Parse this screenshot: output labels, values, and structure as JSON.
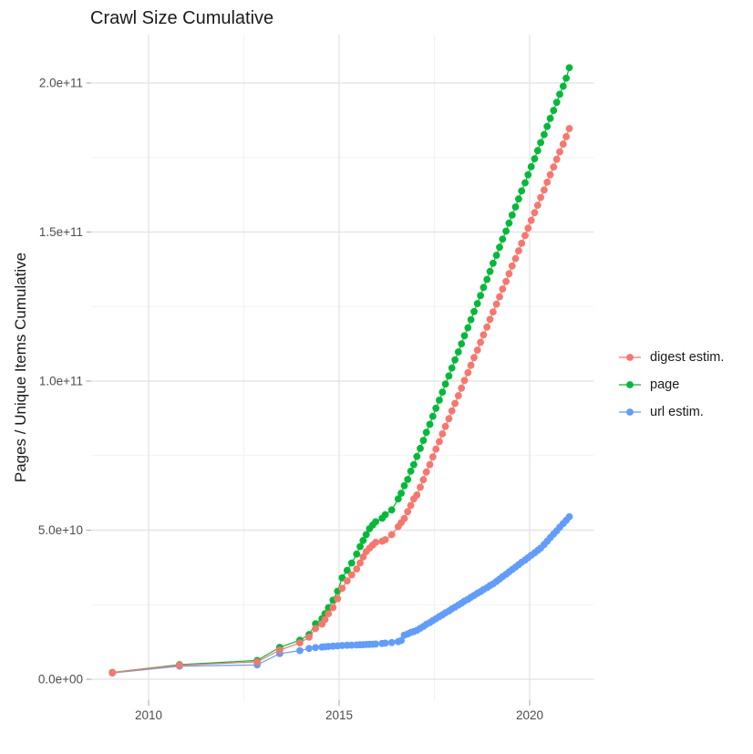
{
  "chart_data": {
    "type": "line",
    "title": "Crawl Size Cumulative",
    "xlabel": "",
    "ylabel": "Pages / Unique Items Cumulative",
    "unit": "pages, billions (1e9)",
    "grid": true,
    "legend_position": "right-center",
    "style": {
      "background": "#FFFFFF",
      "grid_major": "#E5E5E5",
      "grid_minor": "#F2F2F2",
      "tick_color": "#B8B8B8",
      "tick_label_color": "#4D4D4D",
      "text_color": "#1A1A1A"
    },
    "x_axis": {
      "range": [
        2008.5,
        2021.7
      ],
      "ticks": [
        {
          "value": 2010,
          "label": "2010"
        },
        {
          "value": 2015,
          "label": "2015"
        },
        {
          "value": 2020,
          "label": "2020"
        }
      ],
      "minor_ticks": [
        2012.5,
        2017.5
      ]
    },
    "y_axis": {
      "range_billions": [
        0,
        223
      ],
      "ticks": [
        {
          "value": 0,
          "label": "0.0e+00"
        },
        {
          "value": 50,
          "label": "5.0e+10"
        },
        {
          "value": 100,
          "label": "1.0e+11"
        },
        {
          "value": 150,
          "label": "1.5e+11"
        },
        {
          "value": 200,
          "label": "2.0e+11"
        }
      ],
      "minor_ticks": [
        25,
        75,
        125,
        175
      ]
    },
    "draw_order": [
      1,
      2,
      0
    ],
    "series": [
      {
        "name": "digest estim.",
        "color": "#F8766D",
        "points": [
          [
            2009.05,
            2.2
          ],
          [
            2010.81,
            4.7
          ],
          [
            2012.85,
            5.8
          ],
          [
            2013.44,
            9.8
          ],
          [
            2013.97,
            12.2
          ],
          [
            2014.21,
            14.1
          ],
          [
            2014.38,
            17.0
          ],
          [
            2014.55,
            18.5
          ],
          [
            2014.63,
            20.0
          ],
          [
            2014.72,
            22.0
          ],
          [
            2014.84,
            24.0
          ],
          [
            2014.96,
            27.0
          ],
          [
            2015.08,
            30.5
          ],
          [
            2015.21,
            33.0
          ],
          [
            2015.33,
            35.0
          ],
          [
            2015.46,
            37.0
          ],
          [
            2015.55,
            39.0
          ],
          [
            2015.63,
            41.0
          ],
          [
            2015.71,
            42.8
          ],
          [
            2015.8,
            44.0
          ],
          [
            2015.88,
            45.0
          ],
          [
            2015.96,
            45.9
          ],
          [
            2016.13,
            46.3
          ],
          [
            2016.21,
            46.8
          ],
          [
            2016.38,
            48.5
          ],
          [
            2016.55,
            51.2
          ],
          [
            2016.63,
            52.5
          ],
          [
            2016.71,
            53.9
          ],
          [
            2016.8,
            56.2
          ],
          [
            2016.88,
            58.3
          ],
          [
            2016.96,
            60.5
          ],
          [
            2017.04,
            61.8
          ],
          [
            2017.13,
            64.4
          ],
          [
            2017.21,
            66.9
          ],
          [
            2017.29,
            69.5
          ],
          [
            2017.38,
            72.0
          ],
          [
            2017.46,
            74.6
          ],
          [
            2017.54,
            77.2
          ],
          [
            2017.63,
            79.7
          ],
          [
            2017.71,
            82.3
          ],
          [
            2017.79,
            84.8
          ],
          [
            2017.88,
            87.4
          ],
          [
            2017.96,
            90.0
          ],
          [
            2018.04,
            92.5
          ],
          [
            2018.13,
            95.1
          ],
          [
            2018.21,
            97.6
          ],
          [
            2018.29,
            100.2
          ],
          [
            2018.38,
            102.8
          ],
          [
            2018.46,
            105.3
          ],
          [
            2018.54,
            107.9
          ],
          [
            2018.63,
            110.4
          ],
          [
            2018.71,
            113.0
          ],
          [
            2018.79,
            115.5
          ],
          [
            2018.88,
            118.1
          ],
          [
            2018.96,
            120.7
          ],
          [
            2019.04,
            123.2
          ],
          [
            2019.13,
            125.8
          ],
          [
            2019.21,
            128.3
          ],
          [
            2019.29,
            130.9
          ],
          [
            2019.38,
            133.4
          ],
          [
            2019.46,
            136.0
          ],
          [
            2019.54,
            138.6
          ],
          [
            2019.63,
            141.1
          ],
          [
            2019.71,
            143.7
          ],
          [
            2019.79,
            146.2
          ],
          [
            2019.88,
            148.8
          ],
          [
            2019.96,
            151.3
          ],
          [
            2020.04,
            153.9
          ],
          [
            2020.13,
            156.5
          ],
          [
            2020.21,
            159.0
          ],
          [
            2020.29,
            161.6
          ],
          [
            2020.38,
            164.1
          ],
          [
            2020.46,
            166.7
          ],
          [
            2020.54,
            169.2
          ],
          [
            2020.63,
            171.8
          ],
          [
            2020.71,
            174.4
          ],
          [
            2020.79,
            176.9
          ],
          [
            2020.88,
            179.5
          ],
          [
            2020.96,
            182.0
          ],
          [
            2021.04,
            184.7
          ]
        ]
      },
      {
        "name": "page",
        "color": "#00BA38",
        "points": [
          [
            2009.05,
            2.3
          ],
          [
            2010.81,
            4.9
          ],
          [
            2012.85,
            6.3
          ],
          [
            2013.44,
            10.7
          ],
          [
            2013.97,
            13.1
          ],
          [
            2014.21,
            15.0
          ],
          [
            2014.38,
            18.6
          ],
          [
            2014.55,
            20.3
          ],
          [
            2014.63,
            22.0
          ],
          [
            2014.72,
            24.0
          ],
          [
            2014.84,
            26.5
          ],
          [
            2014.96,
            29.5
          ],
          [
            2015.08,
            34.0
          ],
          [
            2015.21,
            36.5
          ],
          [
            2015.33,
            39.0
          ],
          [
            2015.46,
            42.0
          ],
          [
            2015.55,
            44.5
          ],
          [
            2015.63,
            46.5
          ],
          [
            2015.71,
            48.5
          ],
          [
            2015.8,
            50.5
          ],
          [
            2015.88,
            51.7
          ],
          [
            2015.96,
            52.8
          ],
          [
            2016.13,
            54.0
          ],
          [
            2016.21,
            55.2
          ],
          [
            2016.38,
            56.8
          ],
          [
            2016.55,
            60.5
          ],
          [
            2016.63,
            62.4
          ],
          [
            2016.71,
            64.9
          ],
          [
            2016.8,
            67.0
          ],
          [
            2016.88,
            69.8
          ],
          [
            2016.96,
            72.0
          ],
          [
            2017.04,
            74.7
          ],
          [
            2017.13,
            77.4
          ],
          [
            2017.21,
            80.1
          ],
          [
            2017.29,
            82.8
          ],
          [
            2017.38,
            85.5
          ],
          [
            2017.46,
            88.2
          ],
          [
            2017.54,
            90.9
          ],
          [
            2017.63,
            93.6
          ],
          [
            2017.71,
            96.3
          ],
          [
            2017.79,
            99.0
          ],
          [
            2017.88,
            101.7
          ],
          [
            2017.96,
            104.4
          ],
          [
            2018.04,
            107.1
          ],
          [
            2018.13,
            109.8
          ],
          [
            2018.21,
            112.5
          ],
          [
            2018.29,
            115.2
          ],
          [
            2018.38,
            117.9
          ],
          [
            2018.46,
            120.6
          ],
          [
            2018.54,
            123.3
          ],
          [
            2018.63,
            126.0
          ],
          [
            2018.71,
            128.7
          ],
          [
            2018.79,
            131.4
          ],
          [
            2018.88,
            134.1
          ],
          [
            2018.96,
            136.8
          ],
          [
            2019.04,
            139.5
          ],
          [
            2019.13,
            142.2
          ],
          [
            2019.21,
            144.9
          ],
          [
            2019.29,
            147.6
          ],
          [
            2019.38,
            150.3
          ],
          [
            2019.46,
            153.0
          ],
          [
            2019.54,
            155.7
          ],
          [
            2019.63,
            158.4
          ],
          [
            2019.71,
            161.1
          ],
          [
            2019.79,
            163.8
          ],
          [
            2019.88,
            166.5
          ],
          [
            2019.96,
            169.2
          ],
          [
            2020.04,
            171.9
          ],
          [
            2020.13,
            174.6
          ],
          [
            2020.21,
            177.3
          ],
          [
            2020.29,
            180.0
          ],
          [
            2020.38,
            182.7
          ],
          [
            2020.46,
            185.4
          ],
          [
            2020.54,
            188.1
          ],
          [
            2020.63,
            190.8
          ],
          [
            2020.71,
            193.5
          ],
          [
            2020.79,
            196.2
          ],
          [
            2020.88,
            198.9
          ],
          [
            2020.96,
            201.6
          ],
          [
            2021.04,
            205.1
          ]
        ]
      },
      {
        "name": "url estim.",
        "color": "#619CFF",
        "points": [
          [
            2009.05,
            2.1
          ],
          [
            2010.81,
            4.4
          ],
          [
            2012.85,
            4.8
          ],
          [
            2013.44,
            8.6
          ],
          [
            2013.97,
            9.6
          ],
          [
            2014.21,
            10.3
          ],
          [
            2014.38,
            10.6
          ],
          [
            2014.55,
            10.8
          ],
          [
            2014.63,
            10.9
          ],
          [
            2014.72,
            11.0
          ],
          [
            2014.84,
            11.1
          ],
          [
            2014.96,
            11.2
          ],
          [
            2015.08,
            11.3
          ],
          [
            2015.21,
            11.4
          ],
          [
            2015.33,
            11.45
          ],
          [
            2015.46,
            11.5
          ],
          [
            2015.55,
            11.55
          ],
          [
            2015.63,
            11.6
          ],
          [
            2015.71,
            11.65
          ],
          [
            2015.8,
            11.7
          ],
          [
            2015.88,
            11.75
          ],
          [
            2015.96,
            11.8
          ],
          [
            2016.13,
            12.0
          ],
          [
            2016.21,
            12.1
          ],
          [
            2016.38,
            12.3
          ],
          [
            2016.55,
            12.6
          ],
          [
            2016.63,
            13.0
          ],
          [
            2016.71,
            14.8
          ],
          [
            2016.8,
            15.2
          ],
          [
            2016.88,
            15.7
          ],
          [
            2016.96,
            16.0
          ],
          [
            2017.04,
            16.4
          ],
          [
            2017.13,
            17.1
          ],
          [
            2017.21,
            17.7
          ],
          [
            2017.29,
            18.4
          ],
          [
            2017.38,
            19.0
          ],
          [
            2017.46,
            19.7
          ],
          [
            2017.54,
            20.3
          ],
          [
            2017.63,
            21.0
          ],
          [
            2017.71,
            21.6
          ],
          [
            2017.79,
            22.3
          ],
          [
            2017.88,
            22.9
          ],
          [
            2017.96,
            23.6
          ],
          [
            2018.04,
            24.2
          ],
          [
            2018.13,
            24.9
          ],
          [
            2018.21,
            25.5
          ],
          [
            2018.29,
            26.2
          ],
          [
            2018.38,
            26.8
          ],
          [
            2018.46,
            27.5
          ],
          [
            2018.54,
            28.1
          ],
          [
            2018.63,
            28.8
          ],
          [
            2018.71,
            29.4
          ],
          [
            2018.79,
            30.1
          ],
          [
            2018.88,
            30.7
          ],
          [
            2018.96,
            31.4
          ],
          [
            2019.04,
            32.0
          ],
          [
            2019.13,
            32.8
          ],
          [
            2019.21,
            33.6
          ],
          [
            2019.29,
            34.4
          ],
          [
            2019.38,
            35.2
          ],
          [
            2019.46,
            36.0
          ],
          [
            2019.54,
            36.8
          ],
          [
            2019.63,
            37.6
          ],
          [
            2019.71,
            38.4
          ],
          [
            2019.79,
            39.2
          ],
          [
            2019.88,
            40.0
          ],
          [
            2019.96,
            40.8
          ],
          [
            2020.04,
            41.6
          ],
          [
            2020.13,
            42.4
          ],
          [
            2020.21,
            43.2
          ],
          [
            2020.29,
            44.0
          ],
          [
            2020.38,
            45.2
          ],
          [
            2020.46,
            46.3
          ],
          [
            2020.54,
            47.5
          ],
          [
            2020.63,
            48.7
          ],
          [
            2020.71,
            49.8
          ],
          [
            2020.79,
            51.0
          ],
          [
            2020.88,
            52.2
          ],
          [
            2020.96,
            53.3
          ],
          [
            2021.04,
            54.5
          ]
        ]
      }
    ]
  }
}
